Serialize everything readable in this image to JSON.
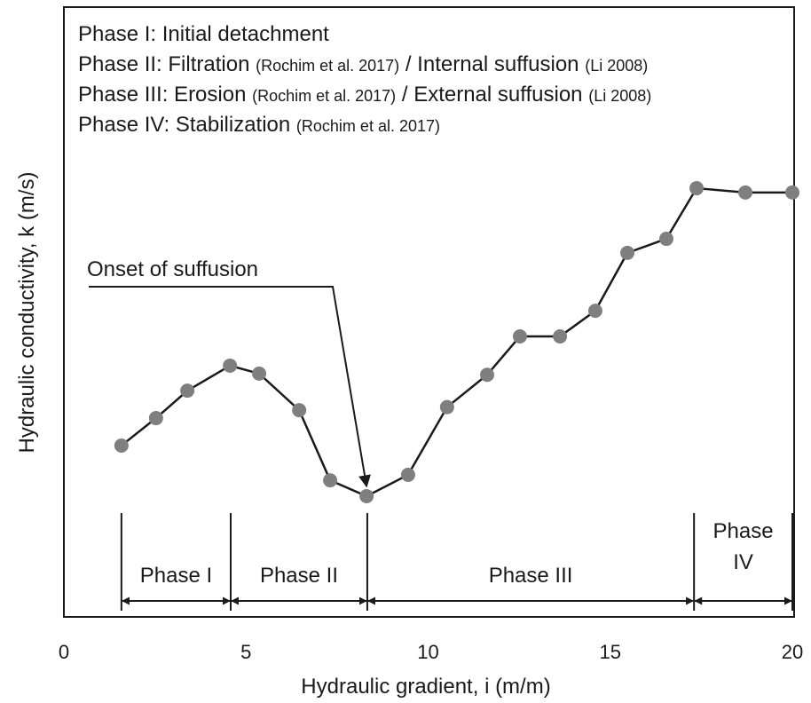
{
  "chart_data": {
    "type": "line",
    "header_lines": [
      [
        "Phase I: Initial detachment"
      ],
      [
        "Phase II: Filtration",
        "(Rochim et al. 2017)",
        "/ Internal suffusion",
        "(Li 2008)"
      ],
      [
        "Phase III: Erosion",
        "(Rochim et al. 2017)",
        "/ External suffusion",
        "(Li 2008)"
      ],
      [
        "Phase IV: Stabilization",
        "(Rochim et al. 2017)"
      ]
    ],
    "x_label": "Hydraulic gradient, i (m/m)",
    "y_label": "Hydraulic conductivity, k (m/s)",
    "xlim": [
      0,
      20
    ],
    "xticks": [
      0,
      5,
      10,
      15,
      20
    ],
    "ylim": [
      0,
      100
    ],
    "series": [
      {
        "line_color": "#1a1a1a",
        "color": "#7f7f7f",
        "x": [
          1.58,
          2.53,
          3.39,
          4.56,
          5.36,
          6.46,
          7.31,
          8.31,
          9.45,
          10.52,
          11.62,
          12.52,
          13.62,
          14.59,
          15.47,
          16.54,
          17.37,
          18.71,
          20
        ],
        "values": [
          28.1,
          32.6,
          37.1,
          41.2,
          39.9,
          33.9,
          22.4,
          19.8,
          23.3,
          34.4,
          39.7,
          46.0,
          46.0,
          50.2,
          59.7,
          62.0,
          70.3,
          69.6,
          69.6
        ]
      }
    ],
    "phase_boundaries": [
      1.58,
      4.58,
      8.33,
      17.3,
      20
    ],
    "phase_labels": [
      [
        "Phase I"
      ],
      [
        "Phase II"
      ],
      [
        "Phase III"
      ],
      [
        "Phase",
        "IV"
      ]
    ],
    "annotation": {
      "text": "Onset of suffusion",
      "x": 8.31,
      "y": 19.8
    }
  }
}
